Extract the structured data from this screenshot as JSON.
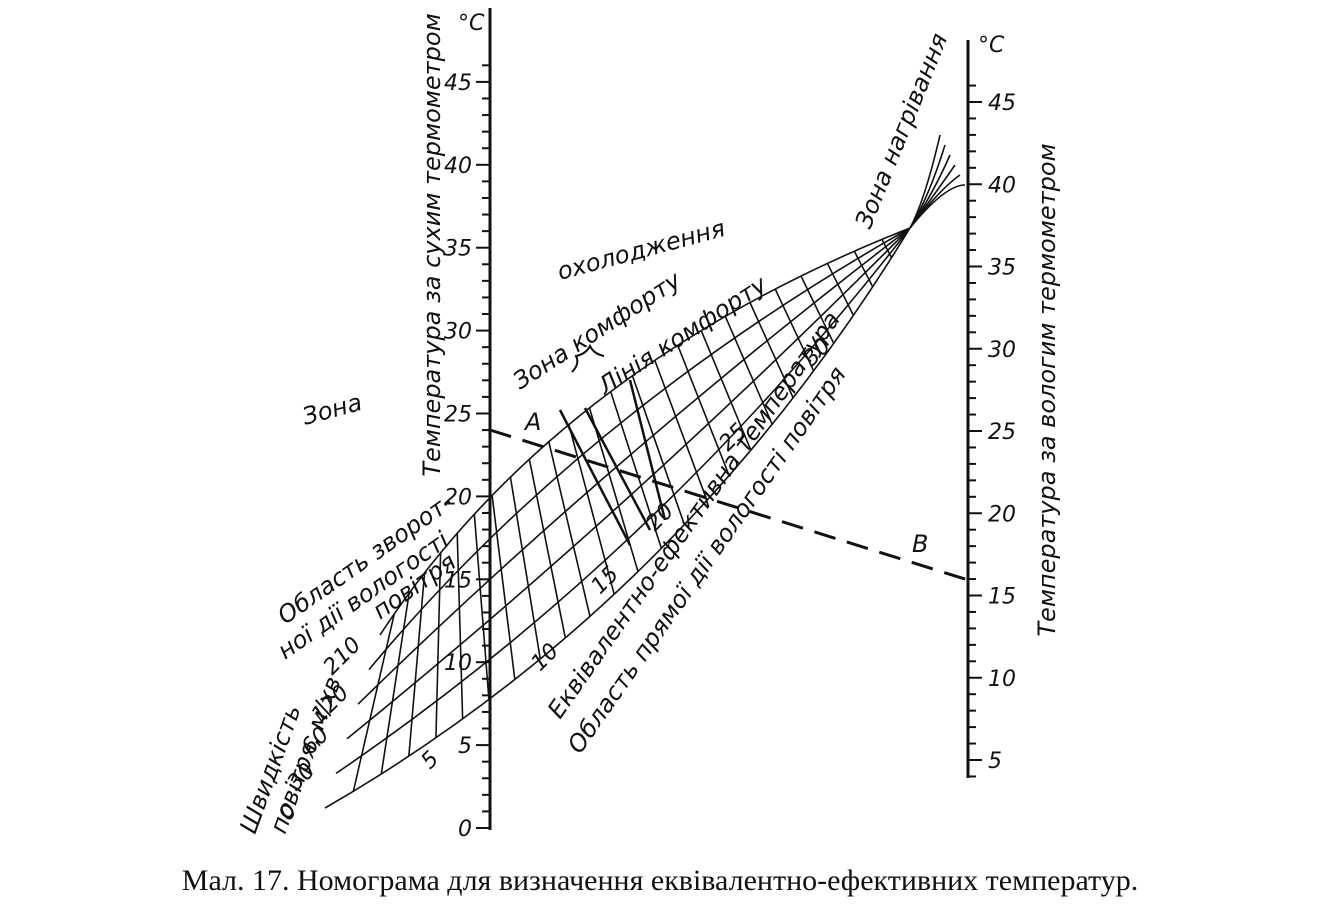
{
  "left_axis": {
    "unit": "°C",
    "title": "Температура за сухим термометром",
    "ticks": [
      0,
      5,
      10,
      15,
      20,
      25,
      30,
      35,
      40,
      45
    ]
  },
  "right_axis": {
    "unit": "°C",
    "title": "Температура за вологим термометром",
    "ticks": [
      5,
      10,
      15,
      20,
      25,
      30,
      35,
      40,
      45
    ]
  },
  "speed": {
    "title_lines": [
      "Швидкість",
      "повітря, м/хв"
    ],
    "labels": [
      0,
      30,
      60,
      120,
      210
    ]
  },
  "et_labels": [
    5,
    10,
    15,
    20,
    25,
    30
  ],
  "zones": {
    "zone_word": "Зона",
    "cooling": "охолодження",
    "comfort_zone": "Зона комфорту",
    "comfort_line": "Лінія комфорту",
    "heating": "Зона нагрівання",
    "reverse_lines": [
      "Область зворот-",
      "ної дії вологості",
      "повітря"
    ],
    "et_title": "Еквівалентно-ефективна температура",
    "direct": "Область прямої дії вологості повітря"
  },
  "points": {
    "a": "A",
    "b": "B"
  },
  "caption": "Мал. 17. Номограма для визначення еквівалентно-ефективних температур."
}
